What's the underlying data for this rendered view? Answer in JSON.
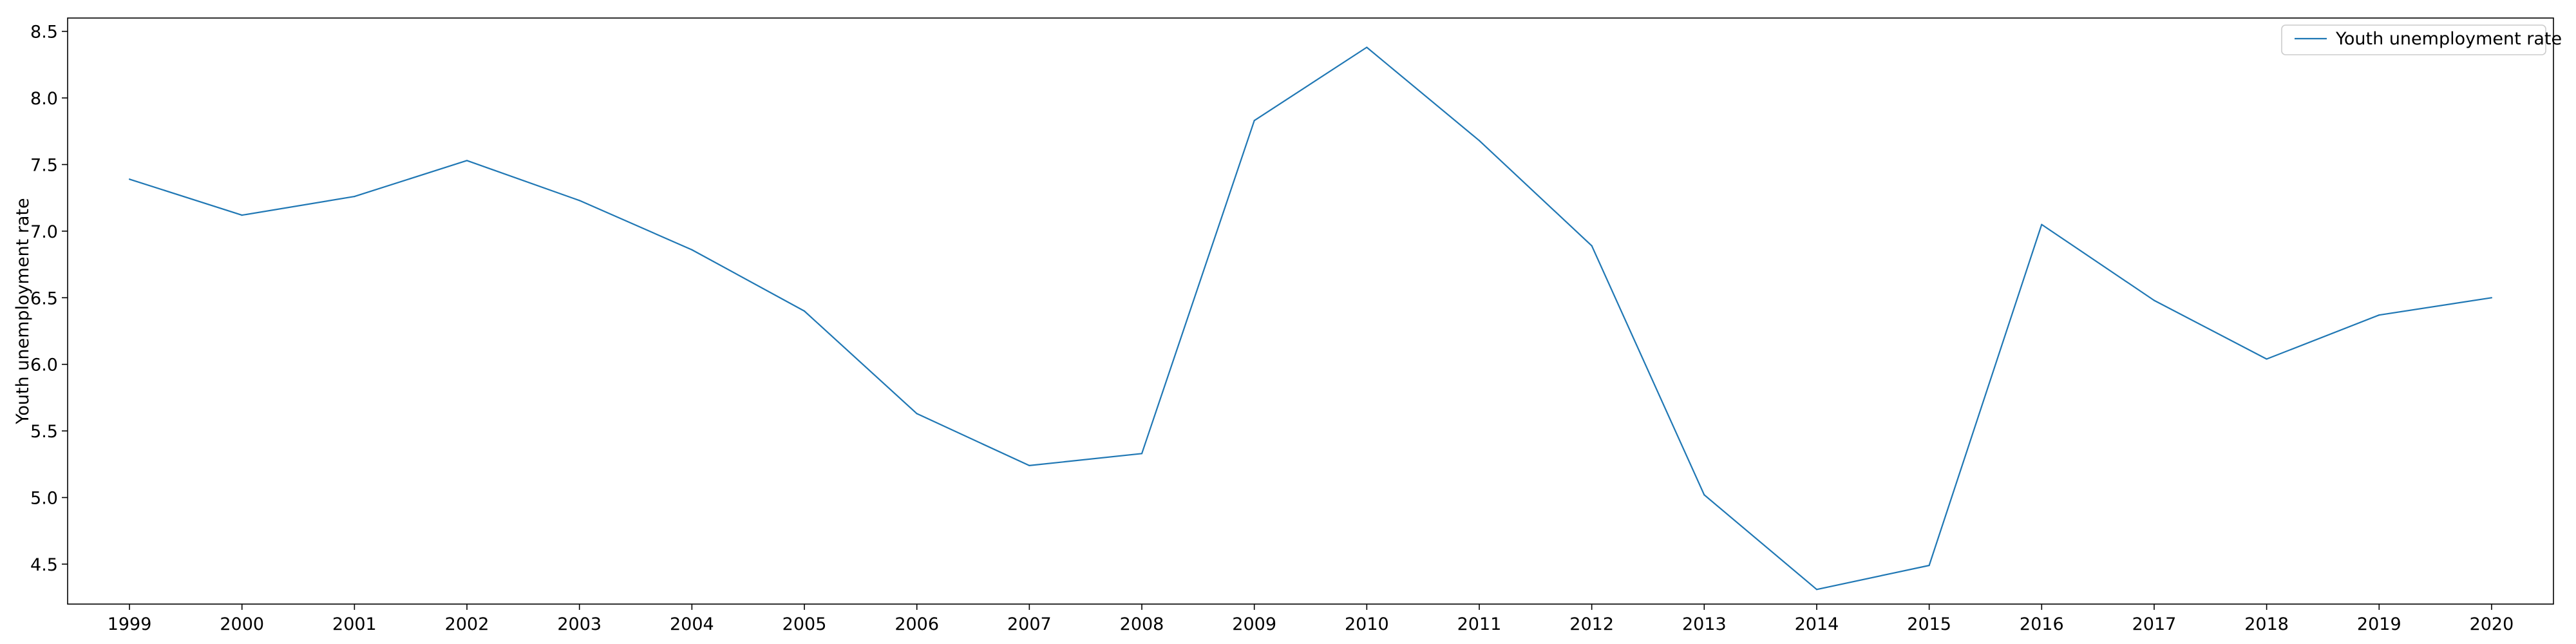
{
  "chart_data": {
    "type": "line",
    "title": "",
    "xlabel": "",
    "ylabel": "Youth unemployment rate",
    "x": [
      1999,
      2000,
      2001,
      2002,
      2003,
      2004,
      2005,
      2006,
      2007,
      2008,
      2009,
      2010,
      2011,
      2012,
      2013,
      2014,
      2015,
      2016,
      2017,
      2018,
      2019,
      2020
    ],
    "series": [
      {
        "name": "Youth unemployment rate",
        "color": "#1f77b4",
        "values": [
          7.39,
          7.12,
          7.26,
          7.53,
          7.23,
          6.86,
          6.4,
          5.63,
          5.24,
          5.33,
          7.83,
          8.38,
          7.68,
          6.89,
          5.02,
          4.31,
          4.49,
          7.05,
          6.48,
          6.04,
          6.37,
          6.5
        ]
      }
    ],
    "ylim": [
      4.2,
      8.6
    ],
    "yticks": [
      4.5,
      5.0,
      5.5,
      6.0,
      6.5,
      7.0,
      7.5,
      8.0,
      8.5
    ],
    "ytick_labels": [
      "4.5",
      "5.0",
      "5.5",
      "6.0",
      "6.5",
      "7.0",
      "7.5",
      "8.0",
      "8.5"
    ],
    "xtick_labels": [
      "1999",
      "2000",
      "2001",
      "2002",
      "2003",
      "2004",
      "2005",
      "2006",
      "2007",
      "2008",
      "2009",
      "2010",
      "2011",
      "2012",
      "2013",
      "2014",
      "2015",
      "2016",
      "2017",
      "2018",
      "2019",
      "2020"
    ],
    "grid": false,
    "legend_position": "top-right"
  }
}
